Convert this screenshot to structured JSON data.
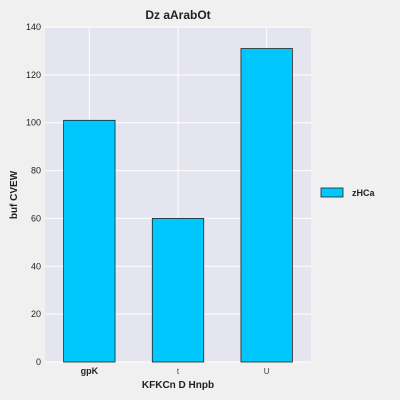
{
  "chart_data": {
    "type": "bar",
    "title": "Dz aArabOt",
    "xlabel": "KFKCn D Hnpb",
    "ylabel": "buf CVEW",
    "categories": [
      "gpK",
      "t",
      "U"
    ],
    "series": [
      {
        "name": "zHCa",
        "values": [
          101,
          60,
          131
        ]
      }
    ],
    "ylim": [
      0,
      140
    ],
    "yticks": [
      0,
      20,
      40,
      60,
      80,
      100,
      120,
      140
    ],
    "grid": true,
    "legend": "right",
    "colors": {
      "bar": "#00c8ff",
      "plot_background": "#e5e5ef",
      "page_background": "#f0f0f0",
      "grid": "#ffffff"
    }
  }
}
